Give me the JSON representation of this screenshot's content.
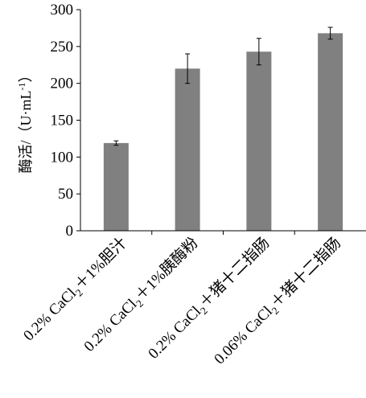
{
  "chart_data": {
    "type": "bar",
    "ylabel": "酶活/（U·mL",
    "ylabel_sup": "-1",
    "ylabel_close": "）",
    "categories": [
      {
        "prefix": "0.2% CaCl",
        "sub": "2",
        "suffix": "＋1%胆汁"
      },
      {
        "prefix": "0.2% CaCl",
        "sub": "2",
        "suffix": "＋1%胰酶粉"
      },
      {
        "prefix": "0.2% CaCl",
        "sub": "2",
        "suffix": "＋猪十二指肠"
      },
      {
        "prefix": "0.06% CaCl",
        "sub": "2",
        "suffix": "＋猪十二指肠"
      }
    ],
    "values": [
      119,
      220,
      243,
      268
    ],
    "errors": [
      3,
      20,
      18,
      8
    ],
    "ylim": [
      0,
      300
    ],
    "yticks": [
      "0",
      "50",
      "100",
      "150",
      "200",
      "250",
      "300"
    ],
    "bar_color": "#808080",
    "grid": false,
    "legend": "none"
  }
}
